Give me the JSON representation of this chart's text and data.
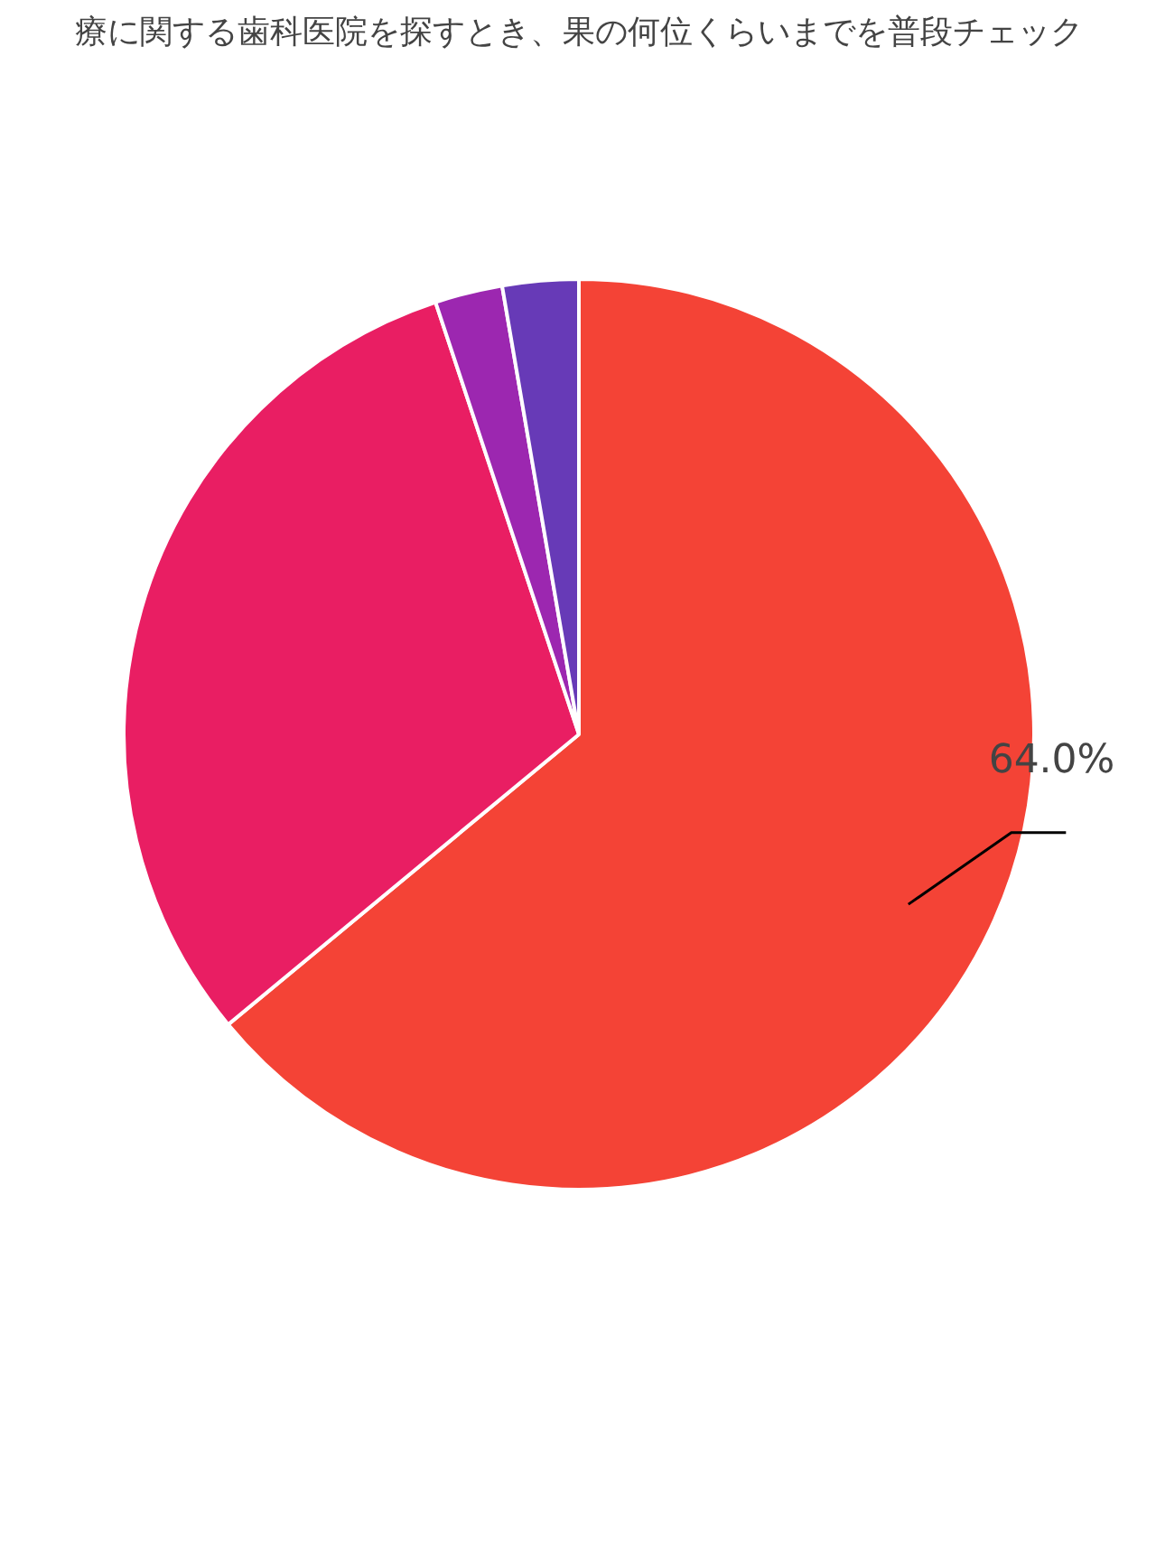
{
  "chart_data": {
    "type": "pie",
    "title": "療に関する歯科医院を探すとき、果の何位くらいまでを普段チェック",
    "categories": [
      null,
      null,
      null,
      null
    ],
    "values": [
      64.0,
      30.9,
      2.4,
      2.7
    ],
    "colors": [
      "#f44336",
      "#e91e63",
      "#9c27b0",
      "#673ab7"
    ],
    "value_labels": [
      "64.0%",
      null,
      null,
      null
    ]
  }
}
